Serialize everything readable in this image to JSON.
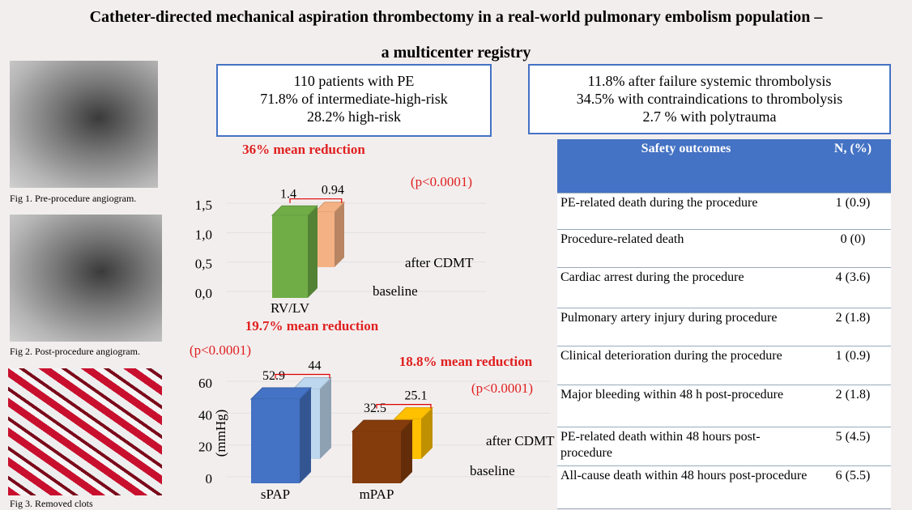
{
  "title": [
    "Catheter-directed mechanical aspiration thrombectomy in a real-world pulmonary embolism population –",
    "a multicenter registry"
  ],
  "figures": [
    "Fig 1. Pre-procedure angiogram.",
    "Fig 2. Post-procedure angiogram.",
    "Fig 3. Removed clots"
  ],
  "boxes": [
    [
      "110 patients with PE",
      "71.8% of intermediate-high-risk",
      "28.2% high-risk"
    ],
    [
      "11.8% after failure systemic thrombolysis",
      "34.5% with contraindications to thrombolysis",
      "2.7 % with polytrauma"
    ]
  ],
  "table": {
    "header": [
      "Safety outcomes",
      "N, (%)"
    ],
    "rows": [
      [
        "PE-related death during the procedure",
        "1 (0.9)"
      ],
      [
        "Procedure-related death",
        "0 (0)"
      ],
      [
        "Cardiac arrest during the procedure",
        "4 (3.6)"
      ],
      [
        "Pulmonary artery injury during procedure",
        "2 (1.8)"
      ],
      [
        "Clinical deterioration during the procedure",
        "1 (0.9)"
      ],
      [
        "Major bleeding within 48 h post-procedure",
        "2 (1.8)"
      ],
      [
        "PE-related death within 48 hours post-procedure",
        "5 (4.5)"
      ],
      [
        "All-cause death within 48 hours post-procedure",
        "6 (5.5)"
      ]
    ]
  },
  "chart_data": [
    {
      "type": "bar",
      "annotations": [
        "36% mean reduction",
        "(p<0.0001)"
      ],
      "categories": [
        "RV/LV"
      ],
      "series": [
        {
          "name": "baseline",
          "colors": [
            "#70ad47"
          ],
          "values": [
            1.4
          ]
        },
        {
          "name": "after CDMT",
          "colors": [
            "#f4b183"
          ],
          "values": [
            0.94
          ]
        }
      ],
      "ylim": [
        0,
        1.5
      ],
      "yticks": [
        {
          "value": 0,
          "label": "0,0"
        },
        {
          "value": 0.5,
          "label": "0,5"
        },
        {
          "value": 1,
          "label": "1,0"
        },
        {
          "value": 1.5,
          "label": "1,5"
        }
      ]
    },
    {
      "type": "bar",
      "annotations": [
        "19.7% mean reduction",
        "(p<0.0001)",
        "18.8% mean reduction",
        "(p<0.0001)"
      ],
      "y_label": "(mmHg)",
      "categories": [
        "sPAP",
        "mPAP"
      ],
      "series": [
        {
          "name": "baseline",
          "colors": [
            "#4472c4",
            "#843c0c"
          ],
          "values": [
            52.9,
            32.5
          ]
        },
        {
          "name": "after CDMT",
          "colors": [
            "#bdd7ee",
            "#ffc000"
          ],
          "values": [
            44,
            25.1
          ]
        }
      ],
      "ylim": [
        0,
        60
      ],
      "yticks": [
        0,
        20,
        40,
        60
      ]
    }
  ]
}
